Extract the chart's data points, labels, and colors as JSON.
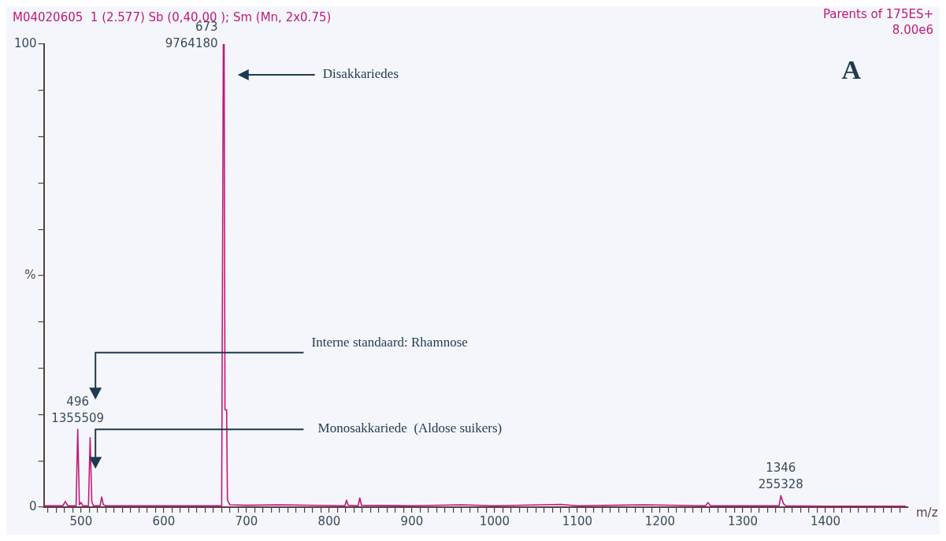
{
  "chart_data": {
    "type": "line",
    "title": "M04020605  1 (2.577) Sb (0,40.00 ); Sm (Mn, 2x0.75)",
    "xlabel": "m/z",
    "ylabel": "%",
    "annotations": [
      "Parents of 175ES+",
      "8.00e6",
      "A",
      {
        "text": "673\n9764180",
        "x": 673,
        "y": 100
      },
      {
        "text": "496\n1355509",
        "x": 496,
        "y": 16.8
      },
      {
        "text": "1346\n255328",
        "x": 1346,
        "y": 2.5
      },
      "Disakkariedes",
      "Interne standaard: Rhamnose",
      "Monosakkariede  (Aldose suikers)"
    ],
    "x": [
      455,
      478,
      481,
      484,
      494,
      496,
      498,
      500,
      502,
      509,
      511,
      513,
      515,
      523,
      525,
      527,
      530,
      600,
      670,
      672,
      673,
      674,
      676,
      677,
      680,
      700,
      740,
      819,
      821,
      823,
      835,
      837,
      839,
      900,
      960,
      1000,
      1080,
      1100,
      1180,
      1255,
      1258,
      1261,
      1300,
      1344,
      1346,
      1349,
      1352,
      1400,
      1497
    ],
    "series": [
      {
        "color": "#c2187a",
        "values": [
          0.3,
          0.3,
          1.2,
          0.3,
          0.3,
          16.8,
          0.5,
          1.0,
          0.3,
          0.3,
          15.0,
          1.2,
          0.3,
          0.3,
          2.2,
          0.5,
          0.3,
          0.3,
          0.3,
          100,
          100,
          21,
          21,
          1.5,
          0.5,
          0.4,
          0.5,
          0.3,
          1.5,
          0.4,
          0.3,
          2.0,
          0.4,
          0.3,
          0.5,
          0.3,
          0.6,
          0.3,
          0.5,
          0.3,
          1.0,
          0.3,
          0.3,
          0.3,
          2.5,
          0.8,
          0.3,
          0.2,
          0.2
        ]
      }
    ],
    "xlim": [
      455,
      1500
    ],
    "xticks": [
      {
        "value": 460,
        "label": null
      },
      {
        "value": 470,
        "label": null
      },
      {
        "value": 480,
        "label": null
      },
      {
        "value": 490,
        "label": null
      },
      500,
      {
        "value": 510,
        "label": null
      },
      {
        "value": 520,
        "label": null
      },
      {
        "value": 530,
        "label": null
      },
      {
        "value": 540,
        "label": null
      },
      {
        "value": 550,
        "label": null
      },
      {
        "value": 560,
        "label": null
      },
      {
        "value": 570,
        "label": null
      },
      {
        "value": 580,
        "label": null
      },
      {
        "value": 590,
        "label": null
      },
      600,
      {
        "value": 610,
        "label": null
      },
      {
        "value": 620,
        "label": null
      },
      {
        "value": 630,
        "label": null
      },
      {
        "value": 640,
        "label": null
      },
      {
        "value": 650,
        "label": null
      },
      {
        "value": 660,
        "label": null
      },
      {
        "value": 670,
        "label": null
      },
      {
        "value": 680,
        "label": null
      },
      {
        "value": 690,
        "label": null
      },
      700,
      {
        "value": 710,
        "label": null
      },
      {
        "value": 720,
        "label": null
      },
      {
        "value": 730,
        "label": null
      },
      {
        "value": 740,
        "label": null
      },
      {
        "value": 750,
        "label": null
      },
      {
        "value": 760,
        "label": null
      },
      {
        "value": 770,
        "label": null
      },
      {
        "value": 780,
        "label": null
      },
      {
        "value": 790,
        "label": null
      },
      800,
      {
        "value": 810,
        "label": null
      },
      {
        "value": 820,
        "label": null
      },
      {
        "value": 830,
        "label": null
      },
      {
        "value": 840,
        "label": null
      },
      {
        "value": 850,
        "label": null
      },
      {
        "value": 860,
        "label": null
      },
      {
        "value": 870,
        "label": null
      },
      {
        "value": 880,
        "label": null
      },
      {
        "value": 890,
        "label": null
      },
      900,
      {
        "value": 910,
        "label": null
      },
      {
        "value": 920,
        "label": null
      },
      {
        "value": 930,
        "label": null
      },
      {
        "value": 940,
        "label": null
      },
      {
        "value": 950,
        "label": null
      },
      {
        "value": 960,
        "label": null
      },
      {
        "value": 970,
        "label": null
      },
      {
        "value": 980,
        "label": null
      },
      {
        "value": 990,
        "label": null
      },
      1000,
      {
        "value": 1010,
        "label": null
      },
      {
        "value": 1020,
        "label": null
      },
      {
        "value": 1030,
        "label": null
      },
      {
        "value": 1040,
        "label": null
      },
      {
        "value": 1050,
        "label": null
      },
      {
        "value": 1060,
        "label": null
      },
      {
        "value": 1070,
        "label": null
      },
      {
        "value": 1080,
        "label": null
      },
      {
        "value": 1090,
        "label": null
      },
      1100,
      {
        "value": 1110,
        "label": null
      },
      {
        "value": 1120,
        "label": null
      },
      {
        "value": 1130,
        "label": null
      },
      {
        "value": 1140,
        "label": null
      },
      {
        "value": 1150,
        "label": null
      },
      {
        "value": 1160,
        "label": null
      },
      {
        "value": 1170,
        "label": null
      },
      {
        "value": 1180,
        "label": null
      },
      {
        "value": 1190,
        "label": null
      },
      1200,
      {
        "value": 1210,
        "label": null
      },
      {
        "value": 1220,
        "label": null
      },
      {
        "value": 1230,
        "label": null
      },
      {
        "value": 1240,
        "label": null
      },
      {
        "value": 1250,
        "label": null
      },
      {
        "value": 1260,
        "label": null
      },
      {
        "value": 1270,
        "label": null
      },
      {
        "value": 1280,
        "label": null
      },
      {
        "value": 1290,
        "label": null
      },
      1300,
      {
        "value": 1310,
        "label": null
      },
      {
        "value": 1320,
        "label": null
      },
      {
        "value": 1330,
        "label": null
      },
      {
        "value": 1340,
        "label": null
      },
      {
        "value": 1350,
        "label": null
      },
      {
        "value": 1360,
        "label": null
      },
      {
        "value": 1370,
        "label": null
      },
      {
        "value": 1380,
        "label": null
      },
      {
        "value": 1390,
        "label": null
      },
      1400,
      {
        "value": 1410,
        "label": null
      },
      {
        "value": 1420,
        "label": null
      },
      {
        "value": 1430,
        "label": null
      },
      {
        "value": 1440,
        "label": null
      },
      {
        "value": 1450,
        "label": null
      },
      {
        "value": 1460,
        "label": null
      },
      {
        "value": 1470,
        "label": null
      },
      {
        "value": 1480,
        "label": null
      },
      {
        "value": 1490,
        "label": null
      }
    ],
    "ylim": [
      0,
      100
    ],
    "yticks": [
      0,
      {
        "value": 10,
        "label": null
      },
      {
        "value": 20,
        "label": null
      },
      {
        "value": 30,
        "label": null
      },
      {
        "value": 40,
        "label": null
      },
      {
        "value": 50,
        "label": null
      },
      {
        "value": 60,
        "label": null
      },
      {
        "value": 70,
        "label": null
      },
      {
        "value": 80,
        "label": null
      },
      {
        "value": 90,
        "label": null
      },
      100
    ],
    "grid": false,
    "legend": false,
    "marker": "none",
    "line_style": "solid"
  }
}
